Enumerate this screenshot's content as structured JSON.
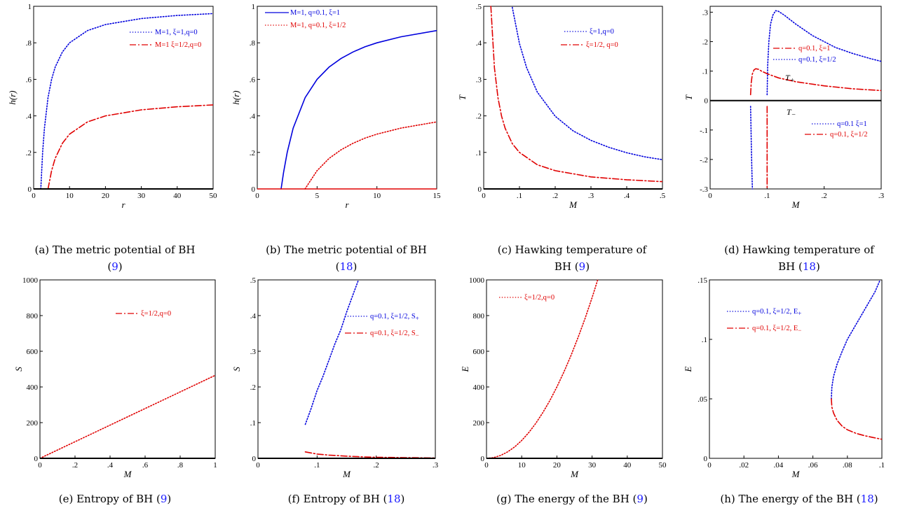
{
  "colors": {
    "blue": "#0000dd",
    "red": "#e00000",
    "black": "#000000",
    "ref": "#1a1aff"
  },
  "chart_data": [
    {
      "id": "a",
      "type": "line",
      "caption_lines": [
        {
          "pre": "(a) The metric potential of BH",
          "ref": "",
          "post": ""
        },
        {
          "pre": "(",
          "ref": "9",
          "post": ")"
        }
      ],
      "xlabel": "r",
      "ylabel": "h(r)",
      "xlim": [
        0,
        50
      ],
      "ylim": [
        0,
        1
      ],
      "xticks": [
        0,
        10,
        20,
        30,
        40,
        50
      ],
      "yticks": [
        0,
        0.2,
        0.4,
        0.6,
        0.8,
        1
      ],
      "series": [
        {
          "name": "M=1, ξ=1,q=0",
          "color": "blue",
          "style": "dotted",
          "x": [
            2,
            2.5,
            3,
            4,
            5,
            6,
            8,
            10,
            15,
            20,
            30,
            40,
            50
          ],
          "y": [
            0,
            0.2,
            0.333,
            0.5,
            0.6,
            0.667,
            0.75,
            0.8,
            0.867,
            0.9,
            0.933,
            0.95,
            0.96
          ]
        },
        {
          "name": "M=1 ξ=1/2,q=0",
          "color": "red",
          "style": "dashdot",
          "x": [
            4,
            5,
            6,
            8,
            10,
            15,
            20,
            30,
            40,
            50
          ],
          "y": [
            0,
            0.1,
            0.167,
            0.25,
            0.3,
            0.367,
            0.4,
            0.433,
            0.45,
            0.46
          ]
        },
        {
          "name": "",
          "color": "black",
          "style": "solid",
          "x": [
            0,
            50
          ],
          "y": [
            0,
            0
          ]
        }
      ],
      "legend": [
        {
          "label": "M=1, ξ=1,q=0",
          "style": "dotted",
          "color": "blue"
        },
        {
          "label": "M=1 ξ=1/2,q=0",
          "style": "dashdot",
          "color": "red"
        }
      ],
      "annotations": []
    },
    {
      "id": "b",
      "type": "line",
      "caption_lines": [
        {
          "pre": "(b) The metric potential of BH",
          "ref": "",
          "post": ""
        },
        {
          "pre": "(",
          "ref": "18",
          "post": ")"
        }
      ],
      "xlabel": "r",
      "ylabel": "h(r)",
      "xlim": [
        0,
        15
      ],
      "ylim": [
        0,
        1
      ],
      "xticks": [
        0,
        5,
        10,
        15
      ],
      "yticks": [
        0,
        0.2,
        0.4,
        0.6,
        0.8,
        1
      ],
      "series": [
        {
          "name": "M=1, q=0.1, ξ=1",
          "color": "blue",
          "style": "solid",
          "x": [
            1.99,
            2.2,
            2.5,
            3,
            4,
            5,
            6,
            7,
            8,
            9,
            10,
            12,
            15
          ],
          "y": [
            0,
            0.09,
            0.2,
            0.333,
            0.5,
            0.6,
            0.667,
            0.714,
            0.75,
            0.778,
            0.8,
            0.833,
            0.867
          ]
        },
        {
          "name": "M=1, q=0.1, ξ=1/2",
          "color": "red",
          "style": "dotted",
          "x": [
            3.99,
            5,
            6,
            7,
            8,
            9,
            10,
            12,
            15
          ],
          "y": [
            0,
            0.1,
            0.167,
            0.214,
            0.25,
            0.278,
            0.3,
            0.333,
            0.367
          ]
        },
        {
          "name": "",
          "color": "red",
          "style": "solid",
          "x": [
            0,
            15
          ],
          "y": [
            0,
            0
          ]
        }
      ],
      "legend": [
        {
          "label": "M=1, q=0.1, ξ=1",
          "style": "solid",
          "color": "blue"
        },
        {
          "label": "M=1, q=0.1, ξ=1/2",
          "style": "dotted",
          "color": "red"
        }
      ],
      "annotations": []
    },
    {
      "id": "c",
      "type": "line",
      "caption_lines": [
        {
          "pre": "(c) Hawking temperature of",
          "ref": "",
          "post": ""
        },
        {
          "pre": "BH (",
          "ref": "9",
          "post": ")"
        }
      ],
      "xlabel": "M",
      "ylabel": "T",
      "xlim": [
        0,
        0.5
      ],
      "ylim": [
        0,
        0.5
      ],
      "xticks": [
        0,
        0.1,
        0.2,
        0.3,
        0.4,
        0.5
      ],
      "yticks": [
        0,
        0.1,
        0.2,
        0.3,
        0.4,
        0.5
      ],
      "series": [
        {
          "name": "ξ=1,q=0",
          "color": "blue",
          "style": "dotted",
          "x": [
            0.08,
            0.1,
            0.12,
            0.15,
            0.2,
            0.25,
            0.3,
            0.35,
            0.4,
            0.45,
            0.5
          ],
          "y": [
            0.497,
            0.398,
            0.332,
            0.265,
            0.199,
            0.159,
            0.133,
            0.114,
            0.099,
            0.088,
            0.08
          ]
        },
        {
          "name": "ξ=1/2, q=0",
          "color": "red",
          "style": "dashdot",
          "x": [
            0.02,
            0.03,
            0.04,
            0.05,
            0.06,
            0.08,
            0.1,
            0.15,
            0.2,
            0.3,
            0.4,
            0.5
          ],
          "y": [
            0.5,
            0.332,
            0.249,
            0.199,
            0.166,
            0.124,
            0.1,
            0.066,
            0.05,
            0.033,
            0.025,
            0.02
          ]
        },
        {
          "name": "",
          "color": "black",
          "style": "solid",
          "x": [
            0,
            0.5
          ],
          "y": [
            0,
            0
          ]
        }
      ],
      "legend": [
        {
          "label": "ξ=1,q=0",
          "style": "dotted",
          "color": "blue"
        },
        {
          "label": "ξ=1/2, q=0",
          "style": "dashdot",
          "color": "red"
        }
      ],
      "annotations": []
    },
    {
      "id": "d",
      "type": "line",
      "caption_lines": [
        {
          "pre": "(d) Hawking temperature of",
          "ref": "",
          "post": ""
        },
        {
          "pre": "BH (",
          "ref": "18",
          "post": ")"
        }
      ],
      "xlabel": "M",
      "ylabel": "T",
      "xlim": [
        0,
        0.3
      ],
      "ylim": [
        -0.3,
        0.32
      ],
      "xticks": [
        0,
        0.1,
        0.2,
        0.3
      ],
      "yticks": [
        -0.3,
        -0.2,
        -0.1,
        0,
        0.1,
        0.2,
        0.3
      ],
      "series": [
        {
          "name": "q=0.1, ξ=1/2 (T+ branch)",
          "color": "blue",
          "style": "dotted",
          "x": [
            0.1,
            0.101,
            0.103,
            0.106,
            0.11,
            0.115,
            0.12,
            0.13,
            0.15,
            0.18,
            0.2,
            0.22,
            0.25,
            0.28,
            0.3
          ],
          "y": [
            0.02,
            0.12,
            0.2,
            0.26,
            0.29,
            0.305,
            0.303,
            0.29,
            0.26,
            0.22,
            0.2,
            0.18,
            0.16,
            0.143,
            0.133
          ]
        },
        {
          "name": "q=0.1, ξ=1 (T+ branch)",
          "color": "red",
          "style": "dashdot",
          "x": [
            0.071,
            0.072,
            0.074,
            0.077,
            0.08,
            0.085,
            0.09,
            0.1,
            0.12,
            0.15,
            0.2,
            0.25,
            0.3
          ],
          "y": [
            0.02,
            0.06,
            0.09,
            0.104,
            0.108,
            0.106,
            0.1,
            0.091,
            0.077,
            0.064,
            0.05,
            0.04,
            0.034
          ]
        },
        {
          "name": "q=0.1 ξ=1 (T- branch)",
          "color": "blue",
          "style": "dotted",
          "x": [
            0.071,
            0.0715,
            0.072,
            0.0725,
            0.073,
            0.0735,
            0.0742
          ],
          "y": [
            -0.02,
            -0.08,
            -0.13,
            -0.18,
            -0.22,
            -0.26,
            -0.3
          ]
        },
        {
          "name": "q=0.1, ξ=1/2 (T- branch)",
          "color": "red",
          "style": "dashdot",
          "x": [
            0.1,
            0.1,
            0.1
          ],
          "y": [
            -0.02,
            -0.16,
            -0.3
          ]
        },
        {
          "name": "",
          "color": "black",
          "style": "solid",
          "x": [
            0,
            0.3
          ],
          "y": [
            0,
            0
          ]
        }
      ],
      "legend": [
        {
          "label": "q=0.1, ξ=1",
          "style": "dashdot",
          "color": "red"
        },
        {
          "label": "q=0.1, ξ=1/2",
          "style": "dotted",
          "color": "blue"
        },
        {
          "label": "q=0.1 ξ=1",
          "style": "dotted",
          "color": "blue"
        },
        {
          "label": "q=0.1, ξ=1/2",
          "style": "dashdot",
          "color": "red"
        }
      ],
      "annotations": [
        {
          "base": "T",
          "sub": "+"
        },
        {
          "base": "T",
          "sub": "−"
        }
      ]
    },
    {
      "id": "e",
      "type": "line",
      "caption_lines": [
        {
          "pre": "(e) Entropy of BH (",
          "ref": "9",
          "post": ")"
        }
      ],
      "xlabel": "M",
      "ylabel": "S",
      "xlim": [
        0,
        1
      ],
      "ylim": [
        0,
        1000
      ],
      "xticks": [
        0,
        0.2,
        0.4,
        0.6,
        0.8,
        1
      ],
      "yticks": [
        0,
        200,
        400,
        600,
        800,
        1000
      ],
      "series": [
        {
          "name": "ξ=1/2,q=0",
          "color": "red",
          "style": "dotted",
          "x": [
            0,
            1
          ],
          "y": [
            0,
            465
          ]
        },
        {
          "name": "",
          "color": "black",
          "style": "solid",
          "x": [
            0,
            1
          ],
          "y": [
            0,
            0
          ]
        }
      ],
      "legend": [
        {
          "label": "ξ=1/2,q=0",
          "style": "dashdot",
          "color": "red"
        }
      ],
      "annotations": []
    },
    {
      "id": "f",
      "type": "line",
      "caption_lines": [
        {
          "pre": "(f) Entropy of BH (",
          "ref": "18",
          "post": ")"
        }
      ],
      "xlabel": "M",
      "ylabel": "S",
      "xlim": [
        0,
        0.3
      ],
      "ylim": [
        0,
        0.5
      ],
      "xticks": [
        0,
        0.1,
        0.2,
        0.3
      ],
      "yticks": [
        0,
        0.1,
        0.2,
        0.3,
        0.4,
        0.5
      ],
      "series": [
        {
          "name": "q=0.1, ξ=1/2, S+",
          "color": "blue",
          "style": "dotted",
          "x": [
            0.08,
            0.09,
            0.1,
            0.11,
            0.12,
            0.13,
            0.14,
            0.15,
            0.16,
            0.17
          ],
          "y": [
            0.095,
            0.14,
            0.19,
            0.23,
            0.275,
            0.32,
            0.36,
            0.41,
            0.455,
            0.5
          ]
        },
        {
          "name": "q=0.1, ξ=1/2, S−",
          "color": "red",
          "style": "dashdot",
          "x": [
            0.08,
            0.1,
            0.12,
            0.15,
            0.18,
            0.2,
            0.25,
            0.3
          ],
          "y": [
            0.018,
            0.012,
            0.009,
            0.006,
            0.004,
            0.003,
            0.002,
            0.001
          ]
        },
        {
          "name": "",
          "color": "black",
          "style": "solid",
          "x": [
            0,
            0.3
          ],
          "y": [
            0,
            0
          ]
        }
      ],
      "legend": [
        {
          "label": "q=0.1, ξ=1/2, S",
          "sub": "+",
          "style": "dotted",
          "color": "blue"
        },
        {
          "label": "q=0.1, ξ=1/2, S",
          "sub": "−",
          "style": "dashdot",
          "color": "red"
        }
      ],
      "annotations": []
    },
    {
      "id": "g",
      "type": "line",
      "caption_lines": [
        {
          "pre": "(g) The energy of the BH (",
          "ref": "9",
          "post": ")"
        }
      ],
      "xlabel": "M",
      "ylabel": "E",
      "xlim": [
        0,
        50
      ],
      "ylim": [
        0,
        1000
      ],
      "xticks": [
        0,
        10,
        20,
        30,
        40,
        50
      ],
      "yticks": [
        0,
        200,
        400,
        600,
        800,
        1000
      ],
      "series": [
        {
          "name": "ξ=1/2,q=0",
          "color": "red",
          "style": "dotted",
          "x": [
            0,
            2,
            4,
            6,
            8,
            10,
            12,
            14,
            16,
            18,
            20,
            22,
            24,
            26,
            28,
            30,
            31.6
          ],
          "y": [
            0,
            4,
            16,
            36,
            64,
            100,
            144,
            196,
            256,
            324,
            400,
            484,
            576,
            676,
            784,
            900,
            1000
          ]
        },
        {
          "name": "",
          "color": "black",
          "style": "solid",
          "x": [
            0,
            50
          ],
          "y": [
            0,
            0
          ]
        }
      ],
      "legend": [
        {
          "label": "ξ=1/2,q=0",
          "style": "dotted",
          "color": "red"
        }
      ],
      "annotations": []
    },
    {
      "id": "h",
      "type": "line",
      "caption_lines": [
        {
          "pre": "(h) The energy of the BH (",
          "ref": "18",
          "post": ")"
        }
      ],
      "xlabel": "M",
      "ylabel": "E",
      "xlim": [
        0,
        0.1
      ],
      "ylim": [
        0,
        0.15
      ],
      "xticks": [
        0,
        0.02,
        0.04,
        0.06,
        0.08,
        0.1
      ],
      "yticks": [
        0,
        0.05,
        0.1,
        0.15
      ],
      "series": [
        {
          "name": "q=0.1, ξ=1/2, E+",
          "color": "blue",
          "style": "dotted",
          "x": [
            0.0707,
            0.071,
            0.072,
            0.074,
            0.077,
            0.08,
            0.084,
            0.088,
            0.092,
            0.096,
            0.099
          ],
          "y": [
            0.05,
            0.06,
            0.069,
            0.079,
            0.09,
            0.1,
            0.11,
            0.12,
            0.13,
            0.14,
            0.15
          ]
        },
        {
          "name": "q=0.1, ξ=1/2, E−",
          "color": "red",
          "style": "dashdot",
          "x": [
            0.0707,
            0.071,
            0.072,
            0.074,
            0.077,
            0.08,
            0.085,
            0.09,
            0.095,
            0.1
          ],
          "y": [
            0.05,
            0.043,
            0.038,
            0.032,
            0.027,
            0.024,
            0.021,
            0.019,
            0.0175,
            0.016
          ]
        }
      ],
      "legend": [
        {
          "label": "q=0.1, ξ=1/2, E",
          "sub": "+",
          "style": "dotted",
          "color": "blue"
        },
        {
          "label": "q=0.1, ξ=1/2, E",
          "sub": "−",
          "style": "dashdot",
          "color": "red"
        }
      ],
      "annotations": []
    }
  ]
}
